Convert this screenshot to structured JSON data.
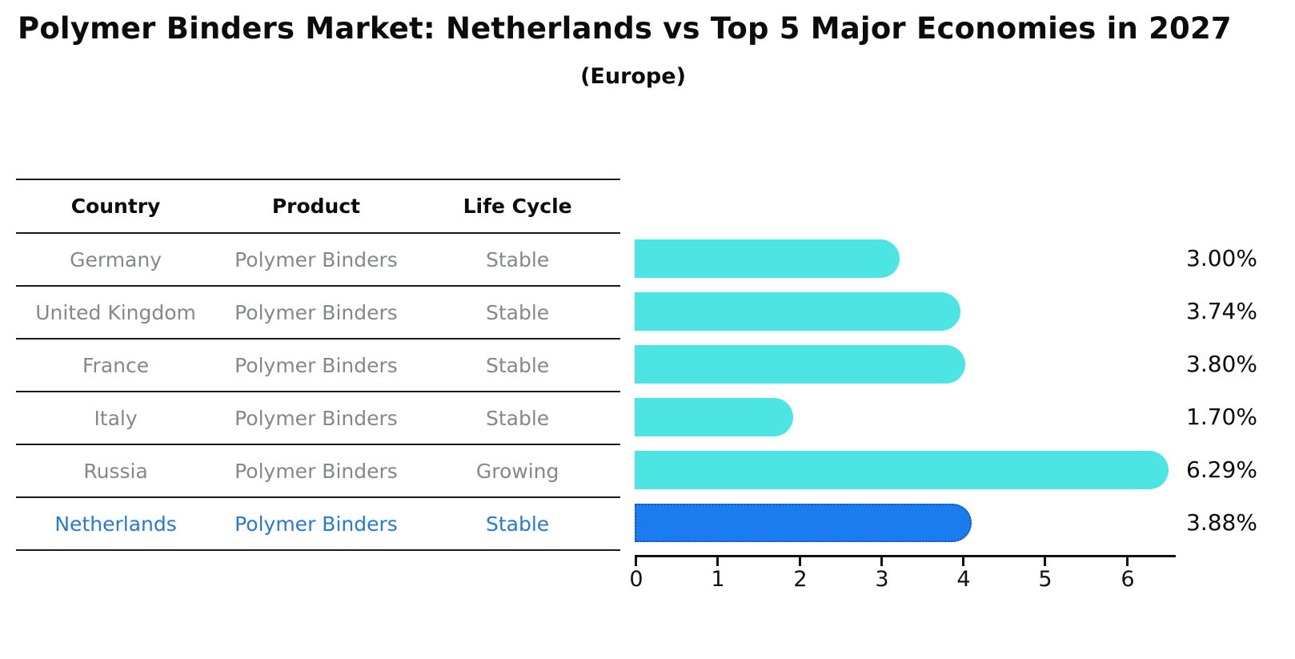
{
  "header": {
    "title": "Polymer Binders Market: Netherlands vs Top 5 Major Economies in 2027",
    "subtitle": "(Europe)"
  },
  "table": {
    "columns": [
      "Country",
      "Product",
      "Life Cycle"
    ],
    "rows": [
      {
        "country": "Germany",
        "product": "Polymer Binders",
        "life_cycle": "Stable",
        "highlight": false
      },
      {
        "country": "United Kingdom",
        "product": "Polymer Binders",
        "life_cycle": "Stable",
        "highlight": false
      },
      {
        "country": "France",
        "product": "Polymer Binders",
        "life_cycle": "Stable",
        "highlight": false
      },
      {
        "country": "Italy",
        "product": "Polymer Binders",
        "life_cycle": "Stable",
        "highlight": false
      },
      {
        "country": "Russia",
        "product": "Polymer Binders",
        "life_cycle": "Growing",
        "highlight": false
      },
      {
        "country": "Netherlands",
        "product": "Polymer Binders",
        "life_cycle": "Stable",
        "highlight": true
      }
    ]
  },
  "chart_data": {
    "type": "bar",
    "orientation": "horizontal",
    "title": "Polymer Binders Market: Netherlands vs Top 5 Major Economies in 2027",
    "subtitle": "(Europe)",
    "categories": [
      "Germany",
      "United Kingdom",
      "France",
      "Italy",
      "Russia",
      "Netherlands"
    ],
    "values": [
      3.0,
      3.74,
      3.8,
      1.7,
      6.29,
      3.88
    ],
    "value_labels": [
      "3.00%",
      "3.74%",
      "3.80%",
      "1.70%",
      "6.29%",
      "3.88%"
    ],
    "x_ticks": [
      0,
      1,
      2,
      3,
      4,
      5,
      6
    ],
    "xlim": [
      0,
      6.59
    ],
    "grid": false,
    "legend": "none",
    "highlight_index": 5,
    "bar_color": "#4DE4E4",
    "highlight_color": "#1B7CEE",
    "highlight_border_color": "#1d50c0",
    "value_label_color": "#0c0c0c"
  },
  "colors": {
    "background": "#ffffff",
    "table_line": "#1a1a1a",
    "table_text_gray": "#858889",
    "highlight_text_blue": "#2878d6",
    "axis_black": "#111111"
  }
}
